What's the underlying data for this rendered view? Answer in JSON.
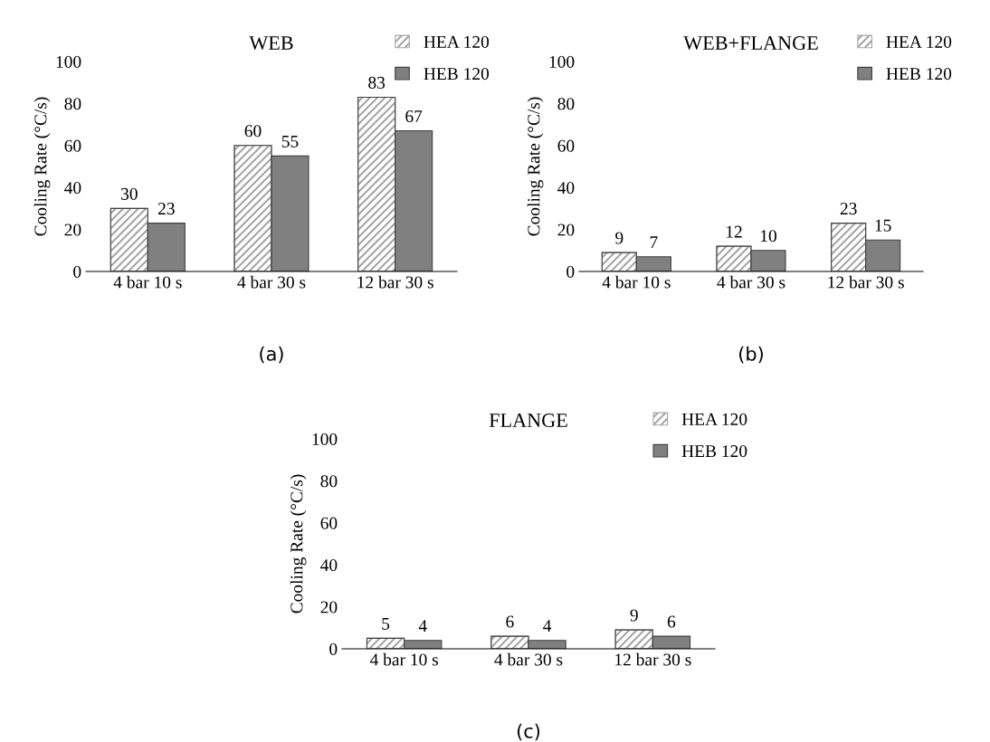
{
  "chart_data": [
    {
      "type": "bar",
      "title": "WEB",
      "ylabel": "Cooling Rate (°C/s)",
      "categories": [
        "4 bar 10 s",
        "4 bar 30 s",
        "12 bar 30 s"
      ],
      "series": [
        {
          "name": "HEA 120",
          "color": "#a6a6a6",
          "values": [
            30,
            60,
            83
          ]
        },
        {
          "name": "HEB 120",
          "color": "#808080",
          "values": [
            23,
            55,
            67
          ]
        }
      ],
      "ylim": [
        0,
        100
      ],
      "yticks": [
        0,
        20,
        40,
        60,
        80,
        100
      ],
      "data_labels": true,
      "legend": "top right",
      "annotations": [
        "(a)"
      ]
    },
    {
      "type": "bar",
      "title": "WEB+FLANGE",
      "ylabel": "Cooling Rate (°C/s)",
      "categories": [
        "4 bar 10 s",
        "4 bar 30 s",
        "12 bar 30 s"
      ],
      "series": [
        {
          "name": "HEA 120",
          "color": "#a6a6a6",
          "values": [
            9,
            12,
            23
          ]
        },
        {
          "name": "HEB 120",
          "color": "#808080",
          "values": [
            7,
            10,
            15
          ]
        }
      ],
      "ylim": [
        0,
        100
      ],
      "yticks": [
        0,
        20,
        40,
        60,
        80,
        100
      ],
      "data_labels": true,
      "legend": "top right",
      "annotations": [
        "(b)"
      ]
    },
    {
      "type": "bar",
      "title": "FLANGE",
      "ylabel": "Cooling Rate (°C/s)",
      "categories": [
        "4 bar 10 s",
        "4 bar 30 s",
        "12 bar 30 s"
      ],
      "series": [
        {
          "name": "HEA 120",
          "color": "#a6a6a6",
          "values": [
            5,
            6,
            9
          ]
        },
        {
          "name": "HEB 120",
          "color": "#808080",
          "values": [
            4,
            4,
            6
          ]
        }
      ],
      "ylim": [
        0,
        100
      ],
      "yticks": [
        0,
        20,
        40,
        60,
        80,
        100
      ],
      "data_labels": true,
      "legend": "top right",
      "annotations": [
        "(c)"
      ]
    }
  ]
}
